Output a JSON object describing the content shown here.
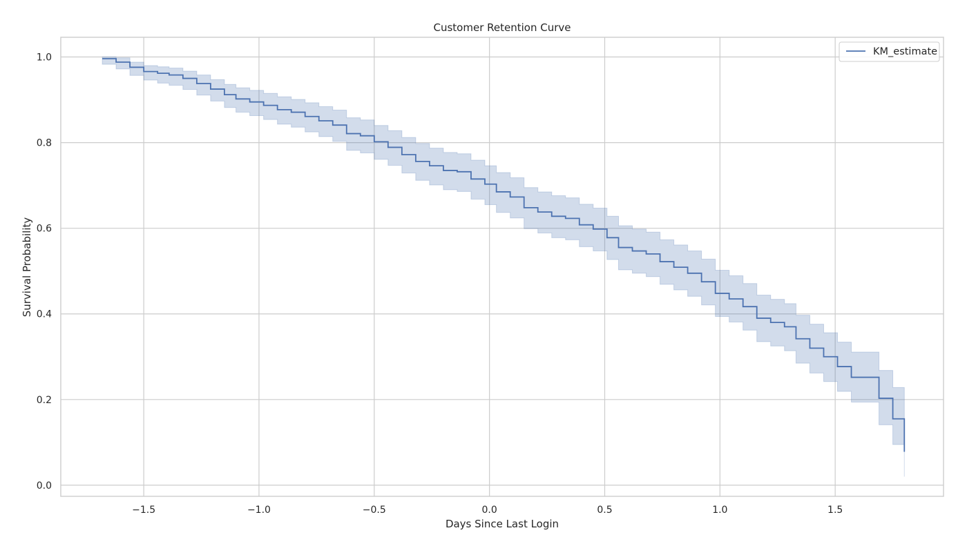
{
  "chart_data": {
    "type": "line",
    "title": "Customer Retention Curve",
    "xlabel": "Days Since Last Login",
    "ylabel": "Survival Probability",
    "xlim": [
      -1.86,
      1.97
    ],
    "ylim": [
      -0.026,
      1.046
    ],
    "xticks": [
      -1.5,
      -1.0,
      -0.5,
      0.0,
      0.5,
      1.0,
      1.5
    ],
    "xtick_labels": [
      "−1.5",
      "−1.0",
      "−0.5",
      "0.0",
      "0.5",
      "1.0",
      "1.5"
    ],
    "yticks": [
      0.0,
      0.2,
      0.4,
      0.6,
      0.8,
      1.0
    ],
    "ytick_labels": [
      "0.0",
      "0.2",
      "0.4",
      "0.6",
      "0.8",
      "1.0"
    ],
    "grid": true,
    "legend": {
      "position": "top-right",
      "entries": [
        "KM_estimate"
      ]
    },
    "colors": {
      "line": "#4c72b0",
      "band": "#4c72b0",
      "grid": "#cccccc",
      "spine": "#cccccc"
    },
    "series": [
      {
        "name": "KM_estimate",
        "steps": [
          [
            -1.68,
            0.996
          ],
          [
            -1.62,
            0.988
          ],
          [
            -1.56,
            0.976
          ],
          [
            -1.5,
            0.966
          ],
          [
            -1.44,
            0.962
          ],
          [
            -1.39,
            0.958
          ],
          [
            -1.33,
            0.95
          ],
          [
            -1.27,
            0.938
          ],
          [
            -1.21,
            0.925
          ],
          [
            -1.15,
            0.912
          ],
          [
            -1.1,
            0.902
          ],
          [
            -1.04,
            0.895
          ],
          [
            -0.98,
            0.887
          ],
          [
            -0.92,
            0.877
          ],
          [
            -0.86,
            0.871
          ],
          [
            -0.8,
            0.861
          ],
          [
            -0.74,
            0.851
          ],
          [
            -0.68,
            0.841
          ],
          [
            -0.62,
            0.821
          ],
          [
            -0.56,
            0.816
          ],
          [
            -0.5,
            0.802
          ],
          [
            -0.44,
            0.789
          ],
          [
            -0.38,
            0.772
          ],
          [
            -0.32,
            0.756
          ],
          [
            -0.26,
            0.746
          ],
          [
            -0.2,
            0.735
          ],
          [
            -0.14,
            0.732
          ],
          [
            -0.08,
            0.715
          ],
          [
            -0.02,
            0.703
          ],
          [
            0.03,
            0.685
          ],
          [
            0.09,
            0.673
          ],
          [
            0.15,
            0.648
          ],
          [
            0.21,
            0.638
          ],
          [
            0.27,
            0.628
          ],
          [
            0.33,
            0.623
          ],
          [
            0.39,
            0.608
          ],
          [
            0.45,
            0.598
          ],
          [
            0.51,
            0.578
          ],
          [
            0.56,
            0.555
          ],
          [
            0.62,
            0.547
          ],
          [
            0.68,
            0.54
          ],
          [
            0.74,
            0.522
          ],
          [
            0.8,
            0.509
          ],
          [
            0.86,
            0.495
          ],
          [
            0.92,
            0.475
          ],
          [
            0.98,
            0.448
          ],
          [
            1.04,
            0.435
          ],
          [
            1.1,
            0.417
          ],
          [
            1.16,
            0.39
          ],
          [
            1.22,
            0.38
          ],
          [
            1.28,
            0.37
          ],
          [
            1.33,
            0.342
          ],
          [
            1.39,
            0.32
          ],
          [
            1.45,
            0.3
          ],
          [
            1.51,
            0.277
          ],
          [
            1.57,
            0.252
          ],
          [
            1.69,
            0.203
          ],
          [
            1.75,
            0.155
          ],
          [
            1.8,
            0.078
          ]
        ],
        "ci_lower": [
          0.983,
          0.972,
          0.957,
          0.946,
          0.939,
          0.934,
          0.924,
          0.911,
          0.897,
          0.882,
          0.871,
          0.863,
          0.854,
          0.843,
          0.836,
          0.825,
          0.814,
          0.803,
          0.782,
          0.776,
          0.761,
          0.747,
          0.729,
          0.712,
          0.701,
          0.69,
          0.686,
          0.668,
          0.655,
          0.637,
          0.624,
          0.599,
          0.589,
          0.578,
          0.573,
          0.557,
          0.547,
          0.527,
          0.503,
          0.495,
          0.487,
          0.469,
          0.456,
          0.441,
          0.421,
          0.394,
          0.381,
          0.362,
          0.335,
          0.325,
          0.314,
          0.285,
          0.262,
          0.242,
          0.219,
          0.194,
          0.141,
          0.095,
          0.02
        ],
        "ci_upper": [
          1.0,
          0.998,
          0.988,
          0.98,
          0.977,
          0.974,
          0.967,
          0.958,
          0.947,
          0.936,
          0.928,
          0.922,
          0.915,
          0.907,
          0.901,
          0.893,
          0.884,
          0.876,
          0.858,
          0.853,
          0.84,
          0.828,
          0.812,
          0.798,
          0.787,
          0.777,
          0.774,
          0.759,
          0.746,
          0.73,
          0.718,
          0.695,
          0.685,
          0.676,
          0.671,
          0.656,
          0.647,
          0.628,
          0.606,
          0.598,
          0.591,
          0.573,
          0.561,
          0.547,
          0.528,
          0.502,
          0.489,
          0.471,
          0.444,
          0.434,
          0.424,
          0.397,
          0.376,
          0.356,
          0.334,
          0.311,
          0.268,
          0.228,
          0.135
        ]
      }
    ]
  }
}
